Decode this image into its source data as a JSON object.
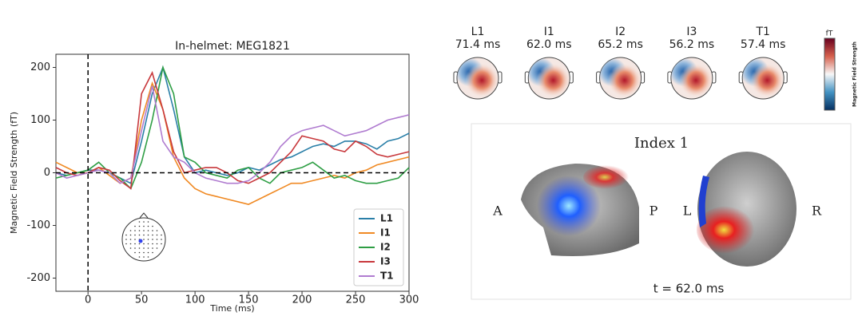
{
  "chart_data": {
    "type": "line",
    "title": "In-helmet: MEG1821",
    "x_label": "Time (ms)",
    "y_label": "Magnetic Field Strength (fT)",
    "x": [
      -30,
      -20,
      -10,
      0,
      10,
      20,
      30,
      40,
      50,
      60,
      70,
      80,
      90,
      100,
      110,
      120,
      130,
      140,
      150,
      160,
      170,
      180,
      190,
      200,
      210,
      220,
      230,
      240,
      250,
      260,
      270,
      280,
      290,
      300
    ],
    "series": [
      {
        "name": "L1",
        "color": "#2a7fa8",
        "values": [
          0,
          -5,
          0,
          5,
          5,
          0,
          -10,
          -20,
          60,
          150,
          200,
          120,
          30,
          0,
          5,
          0,
          -5,
          0,
          10,
          5,
          15,
          25,
          30,
          40,
          50,
          55,
          50,
          60,
          60,
          55,
          45,
          60,
          65,
          75
        ]
      },
      {
        "name": "I1",
        "color": "#f08a24",
        "values": [
          20,
          10,
          0,
          0,
          10,
          -5,
          -20,
          -10,
          100,
          170,
          120,
          30,
          -10,
          -30,
          -40,
          -45,
          -50,
          -55,
          -60,
          -50,
          -40,
          -30,
          -20,
          -20,
          -15,
          -10,
          -5,
          -10,
          0,
          5,
          15,
          20,
          25,
          30
        ]
      },
      {
        "name": "I2",
        "color": "#2e9e44",
        "values": [
          -10,
          -5,
          0,
          5,
          20,
          0,
          -10,
          -30,
          20,
          100,
          200,
          150,
          30,
          20,
          0,
          -5,
          -10,
          5,
          10,
          -10,
          -20,
          0,
          5,
          10,
          20,
          5,
          -10,
          -5,
          -15,
          -20,
          -20,
          -15,
          -10,
          10
        ]
      },
      {
        "name": "I3",
        "color": "#c8383c",
        "values": [
          10,
          0,
          -5,
          0,
          10,
          5,
          -15,
          -30,
          150,
          190,
          120,
          40,
          0,
          5,
          10,
          10,
          0,
          -15,
          -20,
          -10,
          0,
          20,
          40,
          70,
          65,
          60,
          45,
          40,
          60,
          50,
          35,
          30,
          35,
          40
        ]
      },
      {
        "name": "T1",
        "color": "#b07cd0",
        "values": [
          0,
          -10,
          -5,
          0,
          5,
          0,
          -20,
          -10,
          80,
          165,
          60,
          30,
          20,
          0,
          -10,
          -15,
          -20,
          -20,
          -15,
          0,
          20,
          50,
          70,
          80,
          85,
          90,
          80,
          70,
          75,
          80,
          90,
          100,
          105,
          110
        ]
      }
    ],
    "xlim": [
      -30,
      300
    ],
    "xticks": [
      0,
      50,
      100,
      150,
      200,
      250,
      300
    ],
    "ylim": [
      -225,
      225
    ],
    "yticks": [
      -200,
      -100,
      0,
      100,
      200
    ],
    "vline": 0,
    "hline": 0,
    "legend": "lower right"
  },
  "topomaps": [
    {
      "label": "L1",
      "time": "71.4 ms"
    },
    {
      "label": "I1",
      "time": "62.0 ms"
    },
    {
      "label": "I2",
      "time": "65.2 ms"
    },
    {
      "label": "I3",
      "time": "56.2 ms"
    },
    {
      "label": "T1",
      "time": "57.4 ms"
    }
  ],
  "colorbar": {
    "unit": "fT",
    "label": "Magnetic Field Strength"
  },
  "panel_3d": {
    "title": "Index 1",
    "left_labels": [
      "A",
      "P"
    ],
    "right_labels": [
      "L",
      "R"
    ],
    "time": "t = 62.0 ms"
  }
}
